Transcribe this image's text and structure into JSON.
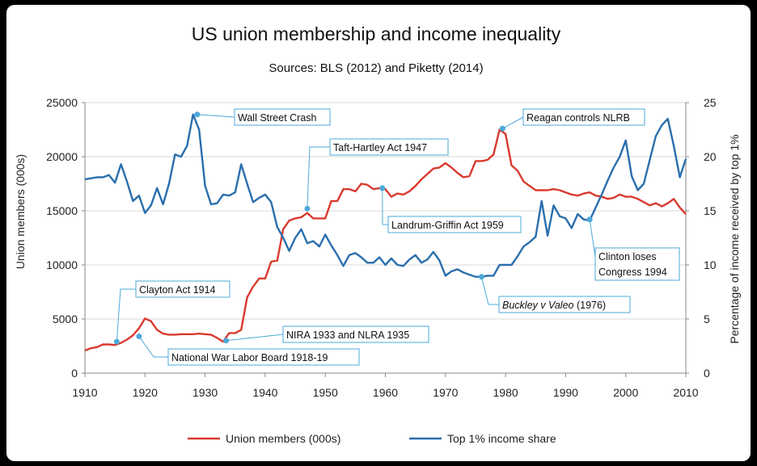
{
  "chart_data": {
    "type": "line",
    "title": "US union membership and income inequality",
    "subtitle": "Sources: BLS (2012) and Piketty (2014)",
    "xlabel": "",
    "ylabel": "Union members (000s)",
    "y2label": "Percentage of income received by top 1%",
    "xlim": [
      1910,
      2010
    ],
    "ylim": [
      0,
      25000
    ],
    "y2lim": [
      0,
      25
    ],
    "xticks": [
      "1910",
      "1920",
      "1930",
      "1940",
      "1950",
      "1960",
      "1970",
      "1980",
      "1990",
      "2000",
      "2010"
    ],
    "yticks": [
      "0",
      "5000",
      "10000",
      "15000",
      "20000",
      "25000"
    ],
    "y2ticks": [
      "0",
      "5",
      "10",
      "15",
      "20",
      "25"
    ],
    "grid": true,
    "legend": "bottom",
    "series": [
      {
        "name": "Union members (000s)",
        "axis": "left",
        "color": "#d93a2f",
        "points": [
          [
            1910,
            2100
          ],
          [
            1911,
            2300
          ],
          [
            1912,
            2400
          ],
          [
            1913,
            2650
          ],
          [
            1914,
            2650
          ],
          [
            1915,
            2600
          ],
          [
            1916,
            2800
          ],
          [
            1917,
            3100
          ],
          [
            1918,
            3500
          ],
          [
            1919,
            4150
          ],
          [
            1920,
            5050
          ],
          [
            1921,
            4800
          ],
          [
            1922,
            4000
          ],
          [
            1923,
            3650
          ],
          [
            1924,
            3550
          ],
          [
            1925,
            3550
          ],
          [
            1926,
            3600
          ],
          [
            1927,
            3600
          ],
          [
            1928,
            3600
          ],
          [
            1929,
            3650
          ],
          [
            1930,
            3600
          ],
          [
            1931,
            3550
          ],
          [
            1932,
            3250
          ],
          [
            1933,
            2900
          ],
          [
            1934,
            3700
          ],
          [
            1935,
            3700
          ],
          [
            1936,
            4000
          ],
          [
            1937,
            7000
          ],
          [
            1938,
            8000
          ],
          [
            1939,
            8750
          ],
          [
            1940,
            8750
          ],
          [
            1941,
            10300
          ],
          [
            1942,
            10400
          ],
          [
            1943,
            13300
          ],
          [
            1944,
            14100
          ],
          [
            1945,
            14300
          ],
          [
            1946,
            14400
          ],
          [
            1947,
            14800
          ],
          [
            1948,
            14300
          ],
          [
            1949,
            14300
          ],
          [
            1950,
            14300
          ],
          [
            1951,
            15900
          ],
          [
            1952,
            15900
          ],
          [
            1953,
            17000
          ],
          [
            1954,
            17000
          ],
          [
            1955,
            16800
          ],
          [
            1956,
            17500
          ],
          [
            1957,
            17400
          ],
          [
            1958,
            17000
          ],
          [
            1959,
            17100
          ],
          [
            1960,
            17000
          ],
          [
            1961,
            16300
          ],
          [
            1962,
            16600
          ],
          [
            1963,
            16500
          ],
          [
            1964,
            16800
          ],
          [
            1965,
            17300
          ],
          [
            1966,
            17900
          ],
          [
            1967,
            18400
          ],
          [
            1968,
            18900
          ],
          [
            1969,
            19000
          ],
          [
            1970,
            19400
          ],
          [
            1971,
            19000
          ],
          [
            1972,
            18500
          ],
          [
            1973,
            18100
          ],
          [
            1974,
            18200
          ],
          [
            1975,
            19600
          ],
          [
            1976,
            19600
          ],
          [
            1977,
            19700
          ],
          [
            1978,
            20200
          ],
          [
            1979,
            22500
          ],
          [
            1980,
            22100
          ],
          [
            1981,
            19200
          ],
          [
            1982,
            18700
          ],
          [
            1983,
            17700
          ],
          [
            1984,
            17300
          ],
          [
            1985,
            16900
          ],
          [
            1986,
            16900
          ],
          [
            1987,
            16900
          ],
          [
            1988,
            17000
          ],
          [
            1989,
            16900
          ],
          [
            1990,
            16700
          ],
          [
            1991,
            16500
          ],
          [
            1992,
            16400
          ],
          [
            1993,
            16600
          ],
          [
            1994,
            16700
          ],
          [
            1995,
            16400
          ],
          [
            1996,
            16300
          ],
          [
            1997,
            16100
          ],
          [
            1998,
            16200
          ],
          [
            1999,
            16500
          ],
          [
            2000,
            16300
          ],
          [
            2001,
            16300
          ],
          [
            2002,
            16100
          ],
          [
            2003,
            15800
          ],
          [
            2004,
            15500
          ],
          [
            2005,
            15700
          ],
          [
            2006,
            15400
          ],
          [
            2007,
            15700
          ],
          [
            2008,
            16100
          ],
          [
            2009,
            15300
          ],
          [
            2010,
            14700
          ]
        ]
      },
      {
        "name": "Top 1% income share",
        "axis": "right",
        "color": "#2a6ead",
        "points": [
          [
            1910,
            17.9
          ],
          [
            1911,
            18.0
          ],
          [
            1912,
            18.1
          ],
          [
            1913,
            18.1
          ],
          [
            1914,
            18.3
          ],
          [
            1915,
            17.6
          ],
          [
            1916,
            19.3
          ],
          [
            1917,
            17.7
          ],
          [
            1918,
            15.9
          ],
          [
            1919,
            16.4
          ],
          [
            1920,
            14.8
          ],
          [
            1921,
            15.5
          ],
          [
            1922,
            17.1
          ],
          [
            1923,
            15.6
          ],
          [
            1924,
            17.5
          ],
          [
            1925,
            20.2
          ],
          [
            1926,
            20.0
          ],
          [
            1927,
            21.0
          ],
          [
            1928,
            23.9
          ],
          [
            1929,
            22.5
          ],
          [
            1930,
            17.3
          ],
          [
            1931,
            15.6
          ],
          [
            1932,
            15.7
          ],
          [
            1933,
            16.5
          ],
          [
            1934,
            16.4
          ],
          [
            1935,
            16.7
          ],
          [
            1936,
            19.3
          ],
          [
            1937,
            17.5
          ],
          [
            1938,
            15.8
          ],
          [
            1939,
            16.2
          ],
          [
            1940,
            16.5
          ],
          [
            1941,
            15.8
          ],
          [
            1942,
            13.5
          ],
          [
            1943,
            12.5
          ],
          [
            1944,
            11.3
          ],
          [
            1945,
            12.5
          ],
          [
            1946,
            13.3
          ],
          [
            1947,
            12.0
          ],
          [
            1948,
            12.2
          ],
          [
            1949,
            11.7
          ],
          [
            1950,
            12.8
          ],
          [
            1951,
            11.8
          ],
          [
            1952,
            10.9
          ],
          [
            1953,
            9.9
          ],
          [
            1954,
            10.9
          ],
          [
            1955,
            11.1
          ],
          [
            1956,
            10.7
          ],
          [
            1957,
            10.2
          ],
          [
            1958,
            10.2
          ],
          [
            1959,
            10.7
          ],
          [
            1960,
            10.0
          ],
          [
            1961,
            10.6
          ],
          [
            1962,
            10.0
          ],
          [
            1963,
            9.9
          ],
          [
            1964,
            10.5
          ],
          [
            1965,
            10.9
          ],
          [
            1966,
            10.2
          ],
          [
            1967,
            10.5
          ],
          [
            1968,
            11.2
          ],
          [
            1969,
            10.4
          ],
          [
            1970,
            9.0
          ],
          [
            1971,
            9.4
          ],
          [
            1972,
            9.6
          ],
          [
            1973,
            9.3
          ],
          [
            1974,
            9.1
          ],
          [
            1975,
            8.9
          ],
          [
            1976,
            8.9
          ],
          [
            1977,
            9.0
          ],
          [
            1978,
            9.0
          ],
          [
            1979,
            10.0
          ],
          [
            1980,
            10.0
          ],
          [
            1981,
            10.0
          ],
          [
            1982,
            10.8
          ],
          [
            1983,
            11.7
          ],
          [
            1984,
            12.1
          ],
          [
            1985,
            12.6
          ],
          [
            1986,
            15.9
          ],
          [
            1987,
            12.7
          ],
          [
            1988,
            15.5
          ],
          [
            1989,
            14.5
          ],
          [
            1990,
            14.3
          ],
          [
            1991,
            13.4
          ],
          [
            1992,
            14.7
          ],
          [
            1993,
            14.2
          ],
          [
            1994,
            14.1
          ],
          [
            1995,
            15.3
          ],
          [
            1996,
            16.5
          ],
          [
            1997,
            17.8
          ],
          [
            1998,
            19.0
          ],
          [
            1999,
            20.0
          ],
          [
            2000,
            21.5
          ],
          [
            2001,
            18.2
          ],
          [
            2002,
            16.9
          ],
          [
            2003,
            17.5
          ],
          [
            2004,
            19.7
          ],
          [
            2005,
            21.9
          ],
          [
            2006,
            22.9
          ],
          [
            2007,
            23.5
          ],
          [
            2008,
            21.0
          ],
          [
            2009,
            18.1
          ],
          [
            2010,
            19.8
          ]
        ]
      }
    ],
    "annotations": [
      {
        "text": "Wall Street Crash",
        "series": 1,
        "x": 1928.7,
        "y": 23.9
      },
      {
        "text": "Taft-Hartley Act 1947",
        "series": 0,
        "x": 1947,
        "y": 15200
      },
      {
        "text": "Reagan controls NLRB",
        "series": 0,
        "x": 1979.5,
        "y": 22600
      },
      {
        "text": "Landrum-Griffin Act 1959",
        "series": 1,
        "x": 1959.5,
        "y": 17.1
      },
      {
        "text": "Clayton Act 1914",
        "series": 0,
        "x": 1915.3,
        "y": 2900
      },
      {
        "text": "NIRA 1933 and NLRA 1935",
        "series": 0,
        "x": 1933.5,
        "y": 3000
      },
      {
        "text": "National War Labor Board 1918-19",
        "series": 1,
        "x": 1919,
        "y": 3.4
      },
      {
        "text": "Buckley v Valeo",
        "text_suffix": " (1976)",
        "series": 1,
        "x": 1976,
        "y": 8.9
      },
      {
        "text": "Clinton loses",
        "text2": "Congress 1994",
        "series": 1,
        "x": 1994,
        "y": 14.2
      }
    ]
  }
}
